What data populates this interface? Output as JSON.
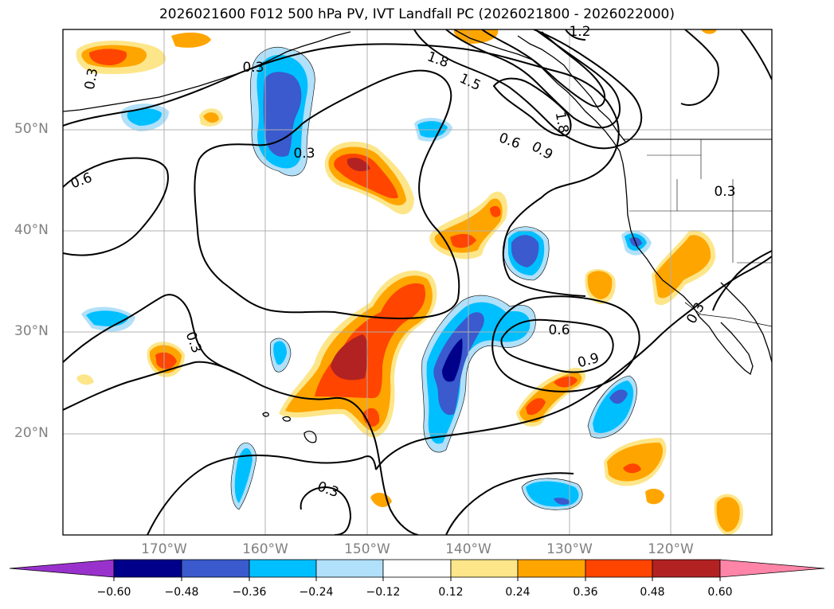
{
  "title": "2026021600 F012 500 hPa PV, IVT Landfall PC (2026021800 - 2026022000)",
  "lon_labels": [
    "170°W",
    "160°W",
    "150°W",
    "140°W",
    "130°W",
    "120°W"
  ],
  "lat_labels": [
    "50°N",
    "40°N",
    "30°N",
    "20°N"
  ],
  "contour_labels": [
    "0.3",
    "0.3",
    "0.3",
    "0.3",
    "0.3",
    "0.3",
    "0.3",
    "0.6",
    "0.6",
    "0.6",
    "0.9",
    "0.9",
    "1.2",
    "1.5",
    "1.8",
    "1.8"
  ],
  "colorbar": {
    "ticks": [
      "−0.60",
      "−0.48",
      "−0.36",
      "−0.24",
      "−0.12",
      "0.12",
      "0.24",
      "0.36",
      "0.48",
      "0.60"
    ],
    "colors": {
      "under": "#9932cc",
      "m060": "#00008b",
      "m048": "#3a5acd",
      "m036": "#00bfff",
      "m024": "#b0e0fa",
      "zero": "#ffffff",
      "p012": "#fde68a",
      "p024": "#ffa500",
      "p036": "#ff4500",
      "p048": "#b22222",
      "over": "#ff85a8"
    }
  }
}
